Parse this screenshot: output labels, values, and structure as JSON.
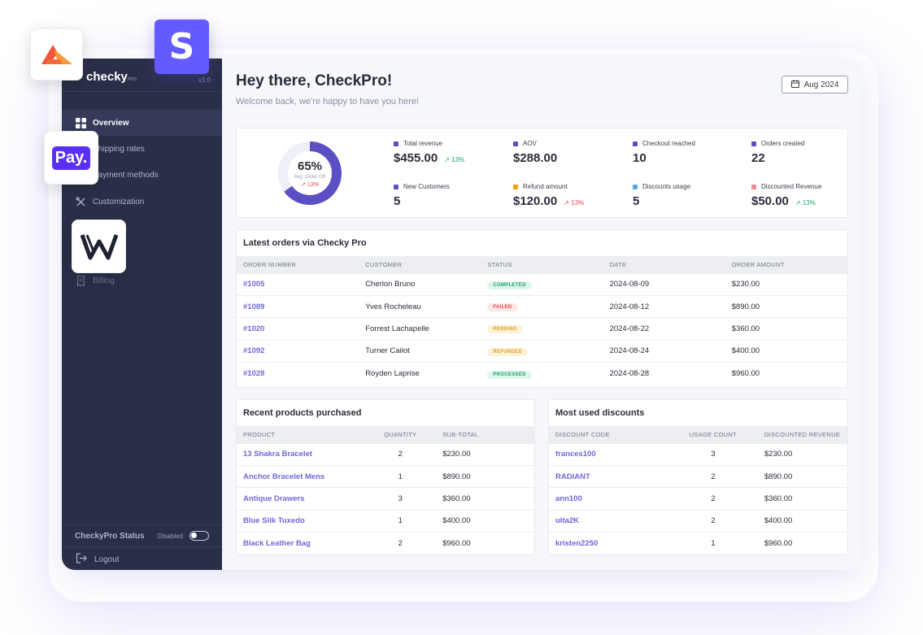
{
  "sidebar": {
    "brand": "checky",
    "brand_tm": "PRO",
    "version": "v1.0",
    "items": [
      {
        "label": "Overview"
      },
      {
        "label": "Shipping rates"
      },
      {
        "label": "Payment methods"
      },
      {
        "label": "Customization"
      },
      {
        "label": "Billing"
      }
    ],
    "status_label": "CheckyPro Status",
    "status_value": "Disabled",
    "logout": "Logout"
  },
  "header": {
    "title": "Hey there, CheckPro!",
    "subtitle": "Welcome back, we're happy to have you here!",
    "date": "Aug 2024"
  },
  "donut": {
    "percent": "65%",
    "label": "Avg. Order CR",
    "trend": "13%",
    "value": 0.65,
    "color": "#5b4fc4"
  },
  "metrics": [
    {
      "label": "Total revenue",
      "value": "$455.00",
      "trend": "13%",
      "dir": "up",
      "color": "#5b4fc4"
    },
    {
      "label": "AOV",
      "value": "$288.00",
      "trend": "",
      "dir": "",
      "color": "#5b4fc4"
    },
    {
      "label": "Checkout reached",
      "value": "10",
      "trend": "",
      "dir": "",
      "color": "#5b4fc4"
    },
    {
      "label": "Orders created",
      "value": "22",
      "trend": "",
      "dir": "",
      "color": "#5b4fc4"
    },
    {
      "label": "New Customers",
      "value": "5",
      "trend": "",
      "dir": "",
      "color": "#5b4fc4"
    },
    {
      "label": "Refund amount",
      "value": "$120.00",
      "trend": "13%",
      "dir": "down",
      "color": "#f2a413"
    },
    {
      "label": "Discounts usage",
      "value": "5",
      "trend": "",
      "dir": "",
      "color": "#5aa9e6"
    },
    {
      "label": "Discounted Revenue",
      "value": "$50.00",
      "trend": "13%",
      "dir": "up",
      "color": "#f08a8a"
    }
  ],
  "orders": {
    "title": "Latest orders via Checky Pro",
    "columns": [
      "ORDER NUMBER",
      "CUSTOMER",
      "STATUS",
      "DATE",
      "ORDER AMOUNT"
    ],
    "rows": [
      {
        "number": "#1005",
        "customer": "Cherlon Bruno",
        "status": "COMPLETED",
        "tone": "green",
        "date": "2024-08-09",
        "amount": "$230.00"
      },
      {
        "number": "#1089",
        "customer": "Yves Rocheleau",
        "status": "FAILED",
        "tone": "red",
        "date": "2024-08-12",
        "amount": "$890.00"
      },
      {
        "number": "#1020",
        "customer": "Forrest Lachapelle",
        "status": "PENDING",
        "tone": "yellow",
        "date": "2024-08-22",
        "amount": "$360.00"
      },
      {
        "number": "#1092",
        "customer": "Turner Cailot",
        "status": "REFUNDED",
        "tone": "yellow",
        "date": "2024-08-24",
        "amount": "$400.00"
      },
      {
        "number": "#1028",
        "customer": "Royden Laprise",
        "status": "PROCESSED",
        "tone": "green",
        "date": "2024-08-28",
        "amount": "$960.00"
      }
    ]
  },
  "products": {
    "title": "Recent products purchased",
    "columns": [
      "PRODUCT",
      "QUANTITY",
      "SUB-TOTAL"
    ],
    "rows": [
      {
        "name": "13 Shakra Bracelet",
        "qty": "2",
        "total": "$230.00"
      },
      {
        "name": "Anchor Bracelet Mens",
        "qty": "1",
        "total": "$890.00"
      },
      {
        "name": "Antique Drawers",
        "qty": "3",
        "total": "$360.00"
      },
      {
        "name": "Blue Silk Tuxedo",
        "qty": "1",
        "total": "$400.00"
      },
      {
        "name": "Black Leather Bag",
        "qty": "2",
        "total": "$960.00"
      }
    ]
  },
  "discounts": {
    "title": "Most used discounts",
    "columns": [
      "DISCOUNT CODE",
      "USAGE COUNT",
      "DISCOUNTED REVENUE"
    ],
    "rows": [
      {
        "code": "frances100",
        "count": "3",
        "revenue": "$230.00"
      },
      {
        "code": "RADIANT",
        "count": "2",
        "revenue": "$890.00"
      },
      {
        "code": "ann100",
        "count": "2",
        "revenue": "$360.00"
      },
      {
        "code": "ulta2K",
        "count": "2",
        "revenue": "$400.00"
      },
      {
        "code": "kristen2250",
        "count": "1",
        "revenue": "$960.00"
      }
    ]
  },
  "floating_icons": {
    "stripe_letter": "S",
    "pay_label": "Pay."
  },
  "colors": {
    "accent": "#6f67d9",
    "sidebar": "#2a2f48",
    "stripe": "#635bff",
    "shop_pay": "#5a31f4"
  }
}
